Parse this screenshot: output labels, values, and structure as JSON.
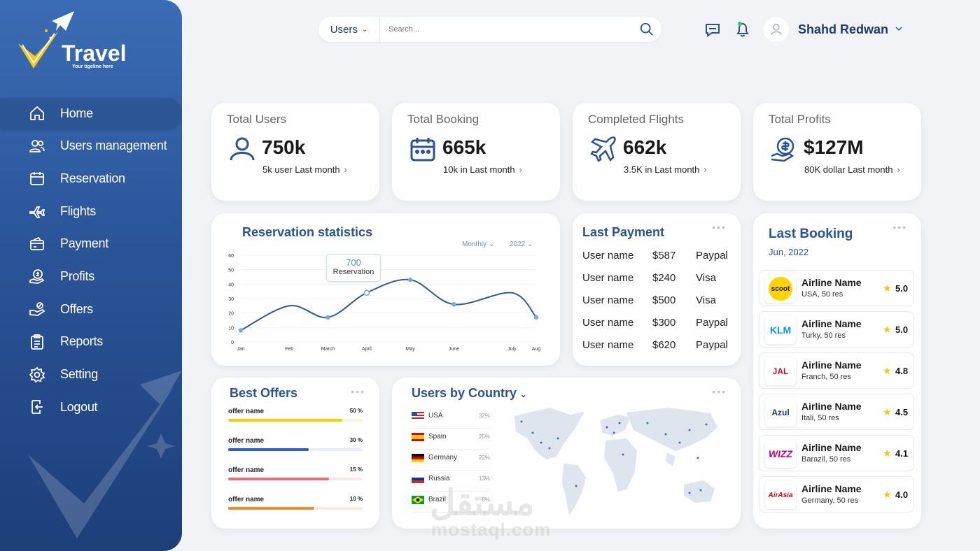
{
  "brand": {
    "name": "Travel",
    "tagline": "Your tigeline here"
  },
  "nav": [
    {
      "label": "Home",
      "icon": "home-icon",
      "active": true
    },
    {
      "label": "Users management",
      "icon": "users-icon"
    },
    {
      "label": "Reservation",
      "icon": "calendar-icon"
    },
    {
      "label": "Flights",
      "icon": "plane-icon"
    },
    {
      "label": "Payment",
      "icon": "payment-icon"
    },
    {
      "label": "Profits",
      "icon": "profits-icon"
    },
    {
      "label": "Offers",
      "icon": "offers-icon"
    },
    {
      "label": "Reports",
      "icon": "reports-icon"
    },
    {
      "label": "Setting",
      "icon": "gear-icon"
    },
    {
      "label": "Logout",
      "icon": "logout-icon"
    }
  ],
  "search": {
    "scope": "Users",
    "placeholder": "Search..."
  },
  "user": {
    "name": "Shahd Redwan"
  },
  "stats": [
    {
      "title": "Total Users",
      "value": "750k",
      "sub": "5k user Last month",
      "icon": "user-icon"
    },
    {
      "title": "Total Booking",
      "value": "665k",
      "sub": "10k in Last month",
      "icon": "calendar-icon"
    },
    {
      "title": "Completed Flights",
      "value": "662k",
      "sub": "3.5K in Last month",
      "icon": "plane-icon"
    },
    {
      "title": "Total Profits",
      "value": "$127M",
      "sub": "80K dollar Last month",
      "icon": "money-hand-icon"
    }
  ],
  "reservation": {
    "title": "Reservation statistics",
    "period": "Monthly",
    "year": "2022",
    "tooltip_value": "700",
    "tooltip_label": "Reservation"
  },
  "chart_data": {
    "type": "line",
    "title": "Reservation statistics",
    "x": [
      "Jan",
      "Feb",
      "March",
      "April",
      "May",
      "June",
      "July",
      "Aug"
    ],
    "x_pos": [
      0,
      1,
      1.8,
      2.6,
      3.5,
      4.4,
      5.6,
      6.1
    ],
    "values": [
      8,
      25,
      17,
      34,
      43,
      26,
      34,
      17
    ],
    "yticks": [
      0,
      10,
      20,
      30,
      40,
      50,
      60
    ],
    "ylim": [
      0,
      60
    ],
    "color": "#2f5a95"
  },
  "last_payment": {
    "title": "Last Payment",
    "rows": [
      {
        "user": "User name",
        "amount": "$587",
        "method": "Paypal"
      },
      {
        "user": "User name",
        "amount": "$240",
        "method": "Visa"
      },
      {
        "user": "User name",
        "amount": "$500",
        "method": "Visa"
      },
      {
        "user": "User name",
        "amount": "$300",
        "method": "Paypal"
      },
      {
        "user": "User name",
        "amount": "$620",
        "method": "Paypal"
      }
    ]
  },
  "last_booking": {
    "title": "Last Booking",
    "date": "Jun, 2022",
    "items": [
      {
        "logo": "scoot",
        "name": "Airline Name",
        "sub": "USA, 50 res",
        "rating": "5.0"
      },
      {
        "logo": "KLM",
        "name": "Airline Name",
        "sub": "Turky, 50 res",
        "rating": "5.0"
      },
      {
        "logo": "JAL",
        "name": "Airline Name",
        "sub": "Franch, 50 res",
        "rating": "4.8"
      },
      {
        "logo": "Azul",
        "name": "Airline Name",
        "sub": "Itali, 50 res",
        "rating": "4.5"
      },
      {
        "logo": "WIZZ",
        "name": "Airline Name",
        "sub": "Barazil, 50 res",
        "rating": "4.1"
      },
      {
        "logo": "AirAsia",
        "name": "Airline Name",
        "sub": "Germany, 50 res",
        "rating": "4.0"
      }
    ]
  },
  "best_offers": {
    "title": "Best Offers",
    "items": [
      {
        "name": "offer name",
        "pct": "50 %",
        "fill": 0.85,
        "color": "#f5d000",
        "track": "#fdf7d8"
      },
      {
        "name": "offer name",
        "pct": "30 %",
        "fill": 0.6,
        "color": "#2c5fd1",
        "track": "#e6edfb"
      },
      {
        "name": "offer name",
        "pct": "15 %",
        "fill": 0.75,
        "color": "#ee6b7b",
        "track": "#fde6e9"
      },
      {
        "name": "offer name",
        "pct": "10 %",
        "fill": 0.64,
        "color": "#f08a2a",
        "track": "#fdebdc"
      }
    ]
  },
  "countries": {
    "title": "Users by Country",
    "items": [
      {
        "name": "USA",
        "pct": "32%"
      },
      {
        "name": "Spain",
        "pct": "25%"
      },
      {
        "name": "Germany",
        "pct": "22%"
      },
      {
        "name": "Russia",
        "pct": "13%"
      },
      {
        "name": "Brazil",
        "pct": "8%"
      }
    ]
  },
  "watermark": {
    "arabic": "مستقل",
    "latin": "mostaql.com"
  }
}
